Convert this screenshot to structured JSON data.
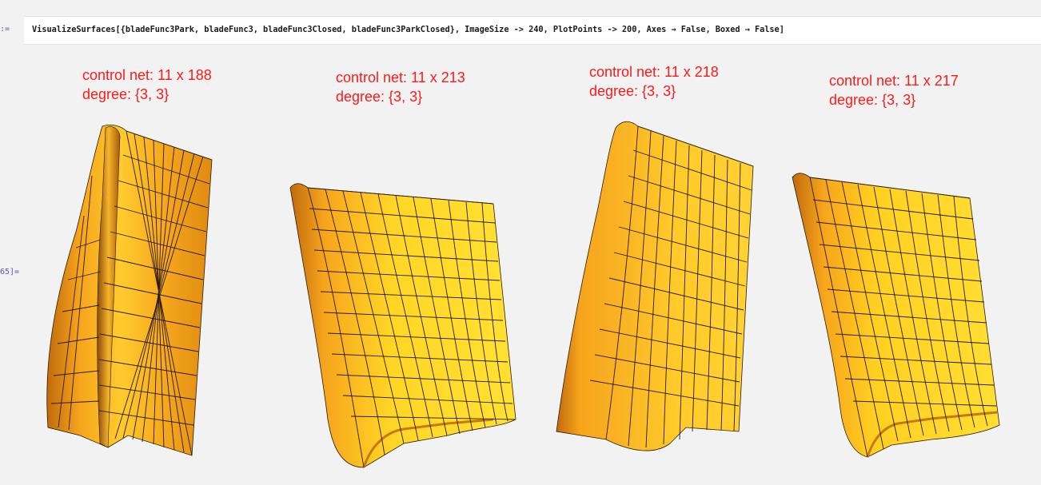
{
  "cell": {
    "input_label": ":=",
    "output_label": "65]=",
    "code": "VisualizeSurfaces[{bladeFunc3Park, bladeFunc3, bladeFunc3Closed, bladeFunc3ParkClosed}, ImageSize -> 240, PlotPoints -> 200, Axes → False, Boxed → False]"
  },
  "panels": [
    {
      "net": "control net: 11 x 188",
      "degree": "degree: {3, 3}"
    },
    {
      "net": "control net: 11 x 213",
      "degree": "degree: {3, 3}"
    },
    {
      "net": "control net: 11 x 218",
      "degree": "degree: {3, 3}"
    },
    {
      "net": "control net: 11 x 217",
      "degree": "degree: {3, 3}"
    }
  ],
  "colors": {
    "annotation": "#ff1a1a",
    "surface_light": "#ffd21e",
    "surface_mid": "#f7a51c",
    "surface_dark": "#c06a0c",
    "mesh": "#2a1a05"
  }
}
